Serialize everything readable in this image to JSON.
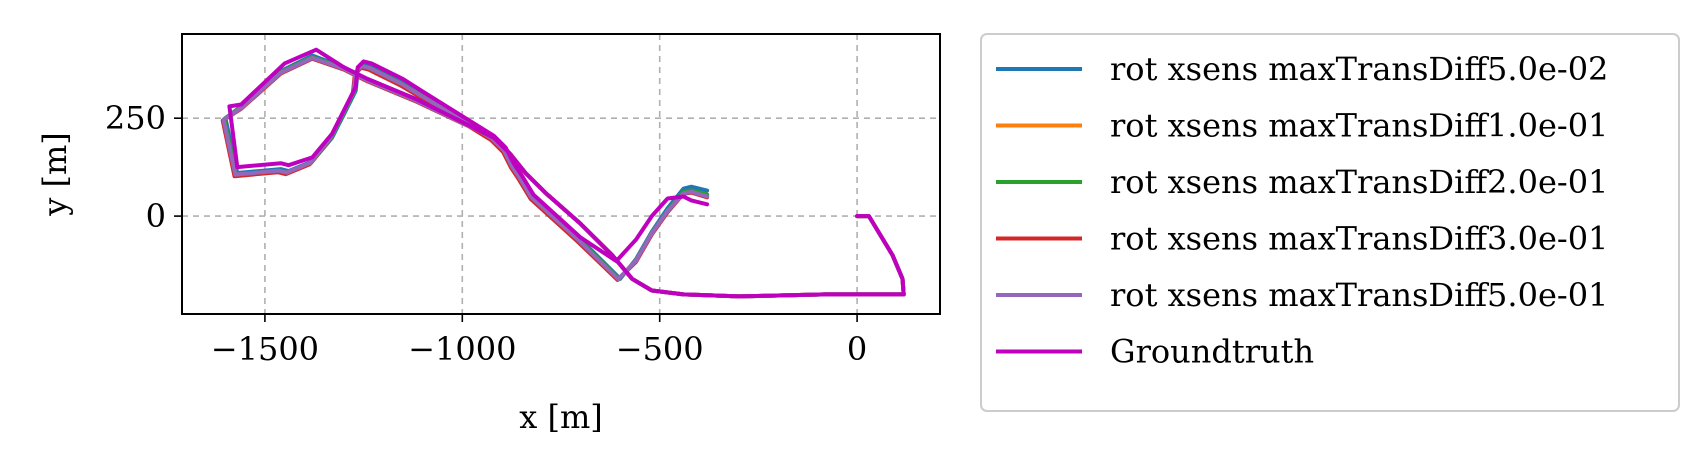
{
  "chart_data": {
    "type": "line",
    "title": "",
    "xlabel": "x [m]",
    "ylabel": "y [m]",
    "xlim": [
      -1710,
      210
    ],
    "ylim": [
      -250,
      465
    ],
    "xticks": [
      -1500,
      -1000,
      -500,
      0
    ],
    "xtick_labels": [
      "−1500",
      "−1000",
      "−500",
      "0"
    ],
    "yticks": [
      0,
      250
    ],
    "ytick_labels": [
      "0",
      "250"
    ],
    "grid": true,
    "legend_position": "outside-right",
    "series": [
      {
        "name": "rot xsens maxTransDiff5.0e-02",
        "color": "#1f77b4",
        "x": [
          0,
          30,
          90,
          115,
          118,
          110,
          -80,
          -300,
          -440,
          -520,
          -570,
          -620,
          -700,
          -790,
          -840,
          -880,
          -920,
          -1000,
          -1120,
          -1240,
          -1300,
          -1380,
          -1460,
          -1560,
          -1600,
          -1570,
          -1460,
          -1440,
          -1380,
          -1330,
          -1300,
          -1270,
          -1265,
          -1250,
          -1230,
          -1210,
          -1180,
          -1150,
          -1100,
          -1000,
          -920,
          -890,
          -870,
          -850,
          -820,
          -700,
          -600,
          -560,
          -520,
          -480,
          -440,
          -420,
          -380
        ],
        "y": [
          0,
          0,
          -100,
          -160,
          -200,
          -200,
          -200,
          -205,
          -200,
          -190,
          -160,
          -100,
          -20,
          60,
          110,
          160,
          200,
          240,
          300,
          350,
          380,
          410,
          370,
          280,
          250,
          110,
          120,
          115,
          140,
          200,
          260,
          320,
          370,
          385,
          380,
          370,
          355,
          340,
          310,
          250,
          200,
          170,
          130,
          100,
          50,
          -60,
          -160,
          -110,
          -40,
          20,
          70,
          75,
          65
        ]
      },
      {
        "name": "rot xsens maxTransDiff1.0e-01",
        "color": "#ff7f0e",
        "x": [
          0,
          30,
          90,
          115,
          118,
          110,
          -80,
          -300,
          -440,
          -520,
          -570,
          -620,
          -700,
          -790,
          -840,
          -880,
          -920,
          -1000,
          -1120,
          -1240,
          -1300,
          -1380,
          -1460,
          -1560,
          -1605,
          -1575,
          -1465,
          -1445,
          -1385,
          -1335,
          -1305,
          -1275,
          -1270,
          -1255,
          -1235,
          -1215,
          -1185,
          -1155,
          -1105,
          -1005,
          -925,
          -895,
          -875,
          -855,
          -825,
          -705,
          -605,
          -560,
          -520,
          -480,
          -440,
          -420,
          -380
        ],
        "y": [
          0,
          0,
          -100,
          -160,
          -200,
          -200,
          -200,
          -205,
          -200,
          -190,
          -160,
          -100,
          -20,
          60,
          110,
          160,
          200,
          238,
          296,
          346,
          376,
          404,
          366,
          276,
          246,
          104,
          114,
          109,
          134,
          196,
          256,
          316,
          366,
          381,
          376,
          366,
          351,
          336,
          306,
          246,
          196,
          166,
          126,
          96,
          46,
          -64,
          -162,
          -115,
          -45,
          12,
          60,
          64,
          52
        ]
      },
      {
        "name": "rot xsens maxTransDiff2.0e-01",
        "color": "#2ca02c",
        "x": [
          0,
          30,
          90,
          115,
          118,
          110,
          -80,
          -300,
          -440,
          -520,
          -570,
          -620,
          -700,
          -790,
          -840,
          -880,
          -920,
          -1000,
          -1120,
          -1240,
          -1300,
          -1380,
          -1460,
          -1560,
          -1603,
          -1573,
          -1463,
          -1443,
          -1383,
          -1333,
          -1303,
          -1273,
          -1268,
          -1253,
          -1233,
          -1213,
          -1183,
          -1153,
          -1103,
          -1003,
          -923,
          -893,
          -873,
          -853,
          -823,
          -703,
          -603,
          -560,
          -520,
          -480,
          -440,
          -420,
          -380
        ],
        "y": [
          0,
          0,
          -100,
          -160,
          -200,
          -200,
          -200,
          -205,
          -200,
          -190,
          -160,
          -100,
          -20,
          60,
          110,
          160,
          200,
          239,
          298,
          348,
          378,
          406,
          368,
          278,
          248,
          106,
          116,
          111,
          136,
          198,
          258,
          318,
          368,
          383,
          378,
          368,
          353,
          338,
          308,
          248,
          198,
          168,
          128,
          98,
          48,
          -62,
          -161,
          -113,
          -43,
          14,
          62,
          66,
          55
        ]
      },
      {
        "name": "rot xsens maxTransDiff3.0e-01",
        "color": "#d62728",
        "x": [
          0,
          30,
          90,
          115,
          118,
          110,
          -80,
          -300,
          -440,
          -520,
          -570,
          -620,
          -700,
          -790,
          -840,
          -880,
          -920,
          -1000,
          -1120,
          -1240,
          -1300,
          -1380,
          -1460,
          -1560,
          -1607,
          -1577,
          -1467,
          -1447,
          -1387,
          -1337,
          -1307,
          -1277,
          -1272,
          -1257,
          -1237,
          -1217,
          -1187,
          -1157,
          -1107,
          -1007,
          -927,
          -897,
          -877,
          -857,
          -827,
          -707,
          -607,
          -560,
          -520,
          -480,
          -440,
          -420,
          -380
        ],
        "y": [
          0,
          0,
          -100,
          -160,
          -200,
          -200,
          -200,
          -205,
          -200,
          -190,
          -160,
          -100,
          -20,
          60,
          110,
          160,
          200,
          237,
          294,
          344,
          374,
          402,
          364,
          274,
          244,
          102,
          112,
          107,
          132,
          194,
          254,
          314,
          364,
          379,
          374,
          364,
          349,
          334,
          304,
          244,
          194,
          164,
          124,
          94,
          44,
          -66,
          -163,
          -117,
          -47,
          10,
          57,
          60,
          48
        ]
      },
      {
        "name": "rot xsens maxTransDiff5.0e-01",
        "color": "#9467bd",
        "x": [
          0,
          30,
          90,
          115,
          118,
          110,
          -80,
          -300,
          -440,
          -520,
          -570,
          -620,
          -700,
          -790,
          -840,
          -880,
          -920,
          -1000,
          -1120,
          -1240,
          -1300,
          -1380,
          -1460,
          -1560,
          -1605,
          -1575,
          -1465,
          -1445,
          -1385,
          -1335,
          -1305,
          -1275,
          -1270,
          -1255,
          -1235,
          -1215,
          -1185,
          -1155,
          -1105,
          -1005,
          -925,
          -895,
          -875,
          -855,
          -825,
          -705,
          -605,
          -560,
          -520,
          -480,
          -440,
          -420,
          -380
        ],
        "y": [
          0,
          0,
          -100,
          -160,
          -200,
          -200,
          -200,
          -205,
          -200,
          -190,
          -160,
          -100,
          -20,
          60,
          110,
          160,
          200,
          238,
          296,
          346,
          376,
          404,
          366,
          276,
          246,
          106,
          116,
          111,
          136,
          198,
          258,
          318,
          368,
          383,
          378,
          368,
          353,
          338,
          308,
          248,
          198,
          168,
          128,
          98,
          48,
          -62,
          -161,
          -114,
          -44,
          13,
          58,
          62,
          50
        ]
      },
      {
        "name": "Groundtruth",
        "color": "#bf00bf",
        "x": [
          0,
          30,
          90,
          115,
          118,
          110,
          -80,
          -300,
          -440,
          -520,
          -570,
          -620,
          -700,
          -790,
          -840,
          -880,
          -920,
          -1000,
          -1120,
          -1240,
          -1300,
          -1370,
          -1450,
          -1560,
          -1590,
          -1570,
          -1460,
          -1440,
          -1380,
          -1330,
          -1300,
          -1270,
          -1265,
          -1250,
          -1230,
          -1210,
          -1180,
          -1150,
          -1100,
          -1000,
          -920,
          -890,
          -870,
          -850,
          -820,
          -700,
          -610,
          -560,
          -520,
          -480,
          -440,
          -420,
          -380
        ],
        "y": [
          0,
          0,
          -100,
          -160,
          -200,
          -200,
          -200,
          -205,
          -200,
          -190,
          -160,
          -100,
          -20,
          60,
          110,
          160,
          200,
          240,
          300,
          350,
          380,
          425,
          390,
          285,
          280,
          125,
          135,
          130,
          150,
          210,
          270,
          330,
          380,
          395,
          390,
          380,
          365,
          350,
          318,
          255,
          205,
          175,
          135,
          105,
          55,
          -55,
          -115,
          -60,
          0,
          45,
          50,
          40,
          30
        ]
      }
    ]
  }
}
